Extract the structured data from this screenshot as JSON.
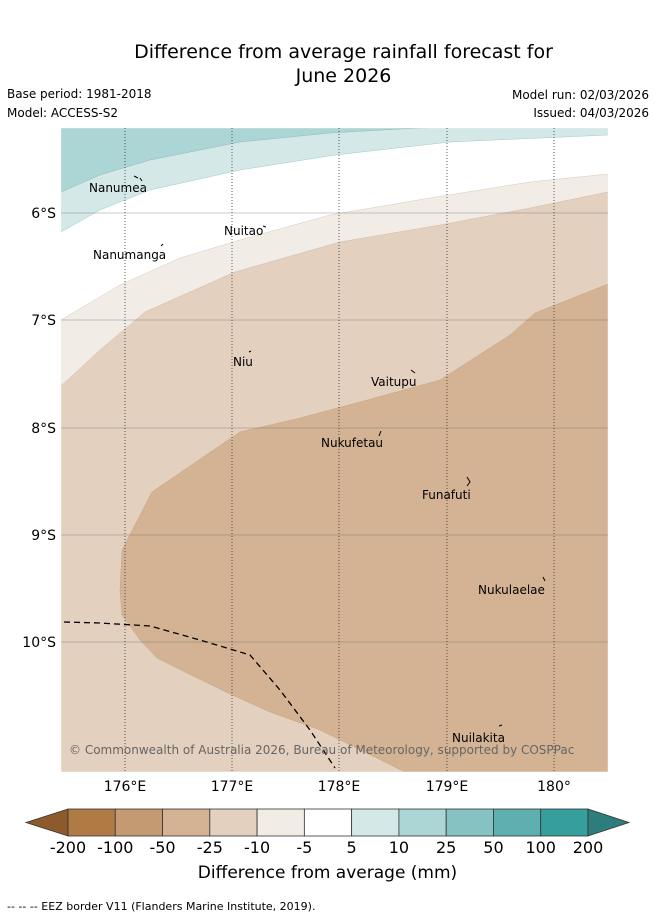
{
  "title_line1": "Difference from average rainfall forecast for",
  "title_line2": "June 2026",
  "base_period": "Base period: 1981-2018",
  "model": "Model: ACCESS-S2",
  "model_run": "Model run: 02/03/2026",
  "issued": "Issued: 04/03/2026",
  "map": {
    "lat_labels": [
      "6°S",
      "7°S",
      "8°S",
      "9°S",
      "10°S"
    ],
    "lon_labels": [
      "176°E",
      "177°E",
      "178°E",
      "179°E",
      "180°"
    ],
    "places": [
      "Nanumea",
      "Nuitao",
      "Nanumanga",
      "Niu",
      "Vaitupu",
      "Nukufetau",
      "Funafuti",
      "Nukulaelae",
      "Nuilakita"
    ],
    "copyright": "© Commonwealth of Australia 2026, Bureau of Meteorology, supported by COSPPac"
  },
  "colorbar": {
    "labels": [
      "-200",
      "-100",
      "-50",
      "-25",
      "-10",
      "-5",
      "5",
      "10",
      "25",
      "50",
      "100",
      "200"
    ],
    "colors": [
      "#8c5a2b",
      "#b07a45",
      "#c49a72",
      "#d3b393",
      "#e3d0bf",
      "#f2ece6",
      "#ffffff",
      "#d5e8e8",
      "#acd6d6",
      "#86c2c2",
      "#5eafaf",
      "#379e9e",
      "#2d7d7d"
    ],
    "title": "Difference from average (mm)"
  },
  "legend_text": "-- --  -- EEZ border V11 (Flanders Marine Institute, 2019)."
}
